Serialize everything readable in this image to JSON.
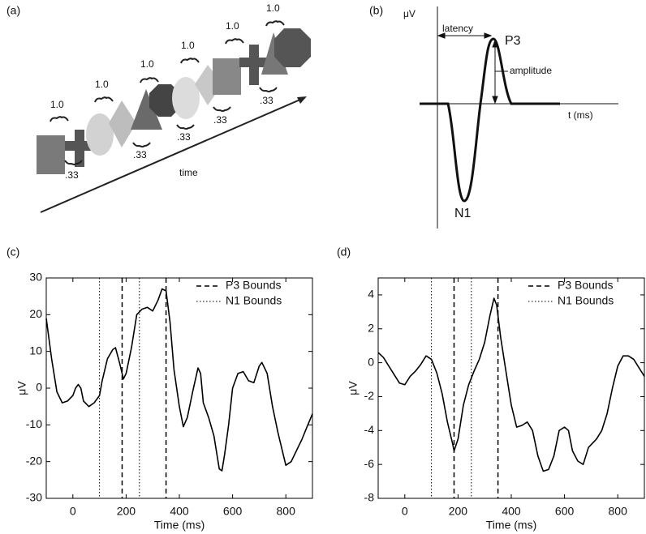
{
  "panels": {
    "a": {
      "label": "(a)",
      "durations": [
        "1.0",
        "1.0",
        "1.0",
        "1.0",
        "1.0",
        "1.0"
      ],
      "intervals": [
        ".33",
        ".33",
        ".33",
        ".33",
        ".33"
      ],
      "axis_label": "time"
    },
    "b": {
      "label": "(b)",
      "y_label": "μV",
      "x_label": "t (ms)",
      "latency": "latency",
      "amplitude": "amplitude",
      "peak": "P3",
      "trough": "N1"
    }
  },
  "chart_data": [
    {
      "type": "line",
      "panel_label": "(c)",
      "xlabel": "Time (ms)",
      "ylabel": "μV",
      "xlim": [
        -100,
        900
      ],
      "ylim": [
        -30,
        30
      ],
      "xticks": [
        0,
        200,
        400,
        600,
        800
      ],
      "yticks": [
        -30,
        -20,
        -10,
        0,
        10,
        20,
        30
      ],
      "x": [
        -100,
        -80,
        -60,
        -40,
        -20,
        0,
        10,
        20,
        30,
        40,
        60,
        80,
        100,
        110,
        130,
        150,
        160,
        175,
        190,
        200,
        220,
        240,
        260,
        280,
        300,
        320,
        335,
        350,
        365,
        380,
        400,
        415,
        430,
        450,
        470,
        480,
        490,
        510,
        530,
        550,
        560,
        570,
        585,
        600,
        620,
        640,
        660,
        680,
        700,
        710,
        730,
        750,
        770,
        790,
        800,
        820,
        840,
        860,
        880,
        900
      ],
      "series": [
        {
          "color": "#000000",
          "values": [
            19,
            8,
            -1,
            -4,
            -3.5,
            -2,
            0,
            1,
            0,
            -3.5,
            -5,
            -4,
            -2,
            2,
            8,
            10.5,
            11,
            7,
            2.5,
            4,
            11,
            20,
            21.5,
            22,
            21,
            24,
            27,
            26.5,
            18,
            5,
            -5,
            -10.5,
            -8,
            -1,
            5.5,
            4,
            -4,
            -8,
            -13,
            -22,
            -22.5,
            -18,
            -10,
            0,
            4,
            4.5,
            2,
            1.5,
            6,
            7,
            4,
            -5,
            -12,
            -18,
            -21,
            -20,
            -17,
            -14,
            -10.5,
            -7
          ]
        }
      ],
      "bounds": [
        {
          "name": "P3 Bounds",
          "style": "dashed",
          "values": [
            185,
            350
          ]
        },
        {
          "name": "N1 Bounds",
          "style": "dotted",
          "values": [
            100,
            250
          ]
        }
      ],
      "legend": "upper right"
    },
    {
      "type": "line",
      "panel_label": "(d)",
      "xlabel": "Time (ms)",
      "ylabel": "μV",
      "xlim": [
        -100,
        900
      ],
      "ylim": [
        -8,
        5
      ],
      "xticks": [
        0,
        200,
        400,
        600,
        800
      ],
      "yticks": [
        -8,
        -6,
        -4,
        -2,
        0,
        2,
        4
      ],
      "x": [
        -100,
        -80,
        -60,
        -40,
        -20,
        0,
        20,
        40,
        60,
        80,
        100,
        120,
        140,
        160,
        180,
        185,
        200,
        220,
        240,
        260,
        280,
        300,
        320,
        335,
        345,
        360,
        380,
        400,
        420,
        440,
        460,
        480,
        500,
        520,
        540,
        560,
        580,
        600,
        615,
        630,
        650,
        670,
        690,
        720,
        740,
        760,
        780,
        800,
        820,
        840,
        860,
        880,
        900
      ],
      "series": [
        {
          "color": "#000000",
          "values": [
            0.6,
            0.3,
            -0.2,
            -0.7,
            -1.2,
            -1.3,
            -0.8,
            -0.5,
            -0.1,
            0.4,
            0.2,
            -0.6,
            -1.8,
            -3.5,
            -4.8,
            -5.2,
            -4.5,
            -2.5,
            -1.3,
            -0.5,
            0.2,
            1.2,
            2.8,
            3.8,
            3.4,
            1.5,
            -0.5,
            -2.5,
            -3.8,
            -3.7,
            -3.5,
            -4,
            -5.5,
            -6.4,
            -6.3,
            -5.5,
            -4,
            -3.8,
            -4,
            -5.2,
            -5.8,
            -6,
            -5,
            -4.5,
            -4,
            -3,
            -1.5,
            -0.2,
            0.4,
            0.4,
            0.2,
            -0.3,
            -0.8
          ]
        }
      ],
      "bounds": [
        {
          "name": "P3 Bounds",
          "style": "dashed",
          "values": [
            185,
            350
          ]
        },
        {
          "name": "N1 Bounds",
          "style": "dotted",
          "values": [
            100,
            250
          ]
        }
      ],
      "legend": "upper right"
    }
  ]
}
